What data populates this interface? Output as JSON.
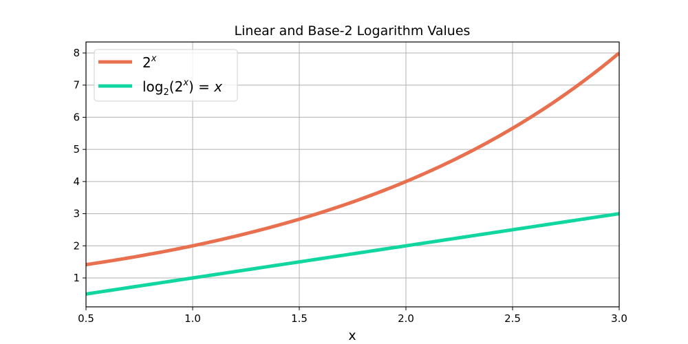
{
  "chart_data": {
    "type": "line",
    "title": "Linear and Base-2 Logarithm Values",
    "xlabel": "x",
    "ylabel": "",
    "xlim": [
      0.5,
      3.0
    ],
    "ylim": [
      0.1,
      8.35
    ],
    "xticks": [
      "0.5",
      "1.0",
      "1.5",
      "2.0",
      "2.5",
      "3.0"
    ],
    "yticks": [
      "1",
      "2",
      "3",
      "4",
      "5",
      "6",
      "7",
      "8"
    ],
    "grid": true,
    "legend_position": "upper left",
    "x": [
      0.5,
      0.75,
      1.0,
      1.25,
      1.5,
      1.75,
      2.0,
      2.25,
      2.5,
      2.75,
      3.0
    ],
    "series": [
      {
        "name": "2^x",
        "color": "#e8704f",
        "values": [
          1.414,
          1.682,
          2.0,
          2.378,
          2.828,
          3.364,
          4.0,
          4.757,
          5.657,
          6.727,
          8.0
        ]
      },
      {
        "name": "log2(2^x) = x",
        "color": "#12d6a0",
        "values": [
          0.5,
          0.75,
          1.0,
          1.25,
          1.5,
          1.75,
          2.0,
          2.25,
          2.5,
          2.75,
          3.0
        ]
      }
    ]
  },
  "legend": {
    "item1": {
      "base": "2",
      "sup": "x"
    },
    "item2": {
      "prefix": "log",
      "sub": "2",
      "mid": "(2",
      "sup": "x",
      "suffix": ") = ",
      "var": "x"
    }
  }
}
